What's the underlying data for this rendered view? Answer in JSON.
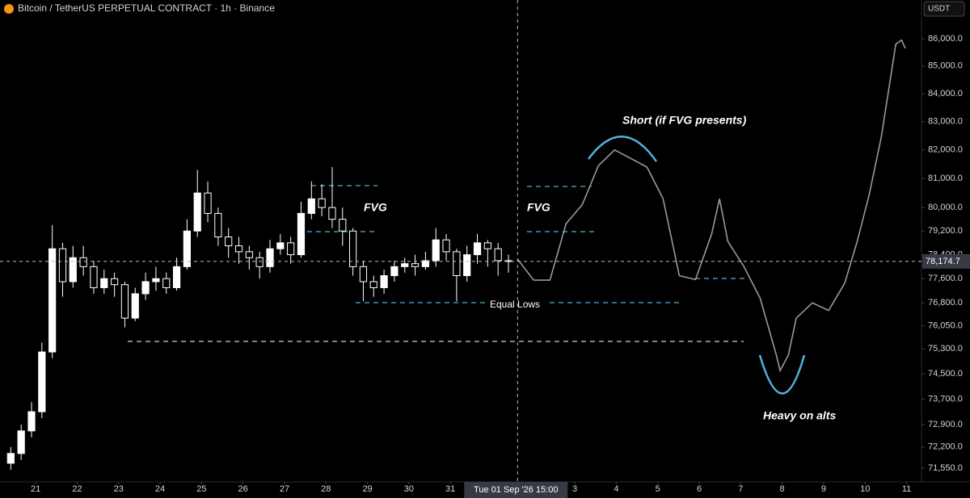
{
  "chart_data": {
    "type": "candlestick",
    "title": "Bitcoin / TetherUS PERPETUAL CONTRACT · 1h · Binance",
    "currency": "USDT",
    "log_scale": true,
    "up_color": "#ffffff",
    "down_color": "#000000",
    "ylim": [
      71130,
      87440
    ],
    "yticks": [
      {
        "value": 86000,
        "label": "86,000.0"
      },
      {
        "value": 85000,
        "label": "85,000.0"
      },
      {
        "value": 84000,
        "label": "84,000.0"
      },
      {
        "value": 83000,
        "label": "83,000.0"
      },
      {
        "value": 82000,
        "label": "82,000.0"
      },
      {
        "value": 81000,
        "label": "81,000.0"
      },
      {
        "value": 80000,
        "label": "80,000.0"
      },
      {
        "value": 79200,
        "label": "79,200.0"
      },
      {
        "value": 78400,
        "label": "78,400.0"
      },
      {
        "value": 77600,
        "label": "77,600.0"
      },
      {
        "value": 76800,
        "label": "76,800.0"
      },
      {
        "value": 76050,
        "label": "76,050.0"
      },
      {
        "value": 75300,
        "label": "75,300.0"
      },
      {
        "value": 74500,
        "label": "74,500.0"
      },
      {
        "value": 73700,
        "label": "73,700.0"
      },
      {
        "value": 72900,
        "label": "72,900.0"
      },
      {
        "value": 72200,
        "label": "72,200.0"
      },
      {
        "value": 71550,
        "label": "71,550.0"
      }
    ],
    "xlim": [
      -0.86,
      21.36
    ],
    "xticks": [
      {
        "value": 0,
        "label": "21"
      },
      {
        "value": 1,
        "label": "22"
      },
      {
        "value": 2,
        "label": "23"
      },
      {
        "value": 3,
        "label": "24"
      },
      {
        "value": 4,
        "label": "25"
      },
      {
        "value": 5,
        "label": "26"
      },
      {
        "value": 6,
        "label": "27"
      },
      {
        "value": 7,
        "label": "28"
      },
      {
        "value": 8,
        "label": "29"
      },
      {
        "value": 9,
        "label": "30"
      },
      {
        "value": 10,
        "label": "31"
      },
      {
        "value": 13,
        "label": "3"
      },
      {
        "value": 14,
        "label": "4"
      },
      {
        "value": 15,
        "label": "5"
      },
      {
        "value": 16,
        "label": "6"
      },
      {
        "value": 17,
        "label": "7"
      },
      {
        "value": 18,
        "label": "8"
      },
      {
        "value": 19,
        "label": "9"
      },
      {
        "value": 20,
        "label": "10"
      },
      {
        "value": 21,
        "label": "11"
      }
    ],
    "x": [
      -0.6,
      -0.35,
      -0.1,
      0.15,
      0.4,
      0.65,
      0.9,
      1.15,
      1.4,
      1.65,
      1.9,
      2.15,
      2.4,
      2.65,
      2.9,
      3.15,
      3.4,
      3.65,
      3.9,
      4.15,
      4.4,
      4.65,
      4.9,
      5.15,
      5.4,
      5.65,
      5.9,
      6.15,
      6.4,
      6.65,
      6.9,
      7.15,
      7.4,
      7.65,
      7.9,
      8.15,
      8.4,
      8.65,
      8.9,
      9.15,
      9.4,
      9.65,
      9.9,
      10.15,
      10.4,
      10.65,
      10.9,
      11.15,
      11.4
    ],
    "open": [
      71700,
      72000,
      72700,
      73300,
      75200,
      78600,
      77500,
      78300,
      78000,
      77300,
      77600,
      77400,
      76300,
      77100,
      77500,
      77600,
      77300,
      78000,
      79200,
      80500,
      79800,
      79000,
      78700,
      78500,
      78300,
      78000,
      78600,
      78800,
      78400,
      79800,
      80300,
      80000,
      79600,
      79200,
      78000,
      77500,
      77300,
      77700,
      78000,
      78100,
      78000,
      78200,
      78900,
      78500,
      77700,
      78400,
      78800,
      78600,
      78200
    ],
    "high": [
      72200,
      72900,
      73600,
      75500,
      79400,
      78800,
      78700,
      78700,
      78200,
      77900,
      77800,
      77500,
      77300,
      77800,
      78000,
      77800,
      78300,
      79600,
      81300,
      80900,
      80000,
      79300,
      79000,
      78700,
      78500,
      78900,
      79100,
      79000,
      80200,
      80900,
      80800,
      81400,
      80000,
      79300,
      78200,
      77700,
      77900,
      78200,
      78300,
      78400,
      78500,
      79300,
      79100,
      78600,
      78700,
      79100,
      78900,
      78800,
      78400
    ],
    "low": [
      71500,
      71800,
      72500,
      73100,
      75000,
      77000,
      77300,
      77700,
      77100,
      77100,
      77000,
      76000,
      76200,
      76900,
      77200,
      77100,
      77200,
      77900,
      79000,
      79500,
      78700,
      78300,
      78100,
      77900,
      77600,
      77800,
      78400,
      78100,
      78300,
      79600,
      79700,
      79300,
      78700,
      77700,
      76850,
      77000,
      77100,
      77500,
      77800,
      77700,
      77900,
      78000,
      78200,
      76850,
      77500,
      78100,
      78000,
      77700,
      77800
    ],
    "close": [
      72000,
      72700,
      73300,
      75200,
      78600,
      77500,
      78300,
      78000,
      77300,
      77600,
      77400,
      76300,
      77100,
      77500,
      77600,
      77300,
      78000,
      79200,
      80500,
      79800,
      79000,
      78700,
      78500,
      78300,
      78000,
      78600,
      78800,
      78400,
      79800,
      80300,
      80000,
      79600,
      79200,
      78000,
      77500,
      77300,
      77700,
      78000,
      78100,
      78000,
      78200,
      78900,
      78500,
      77700,
      78400,
      78800,
      78600,
      78200,
      78174.7
    ],
    "projection": {
      "color": "#9a9a9a",
      "x": [
        11.62,
        12.01,
        12.4,
        12.79,
        13.18,
        13.57,
        13.96,
        14.35,
        14.74,
        15.13,
        15.52,
        15.91,
        16.3,
        16.49,
        16.69,
        17.08,
        17.47,
        17.86,
        17.95,
        18.15,
        18.34,
        18.73,
        19.12,
        19.51,
        19.81,
        20.1,
        20.39,
        20.58,
        20.74,
        20.88,
        20.97
      ],
      "values": [
        78250,
        77550,
        77550,
        79450,
        80100,
        81450,
        82000,
        81700,
        81400,
        80300,
        77700,
        77570,
        79100,
        80300,
        78850,
        78000,
        76950,
        75100,
        74600,
        75100,
        76300,
        76800,
        76550,
        77450,
        78850,
        80450,
        82450,
        84250,
        85800,
        85950,
        85650
      ]
    },
    "crosshair": {
      "x": 11.62,
      "x_label": "Tue 01 Sep '26  15:00",
      "y": 78174.7,
      "y_label": "78,174.7"
    },
    "annotations": {
      "fvg_left": "FVG",
      "fvg_right": "FVG",
      "short": "Short (if FVG presents)",
      "equal_lows": "Equal Lows",
      "heavy": "Heavy on alts"
    }
  }
}
